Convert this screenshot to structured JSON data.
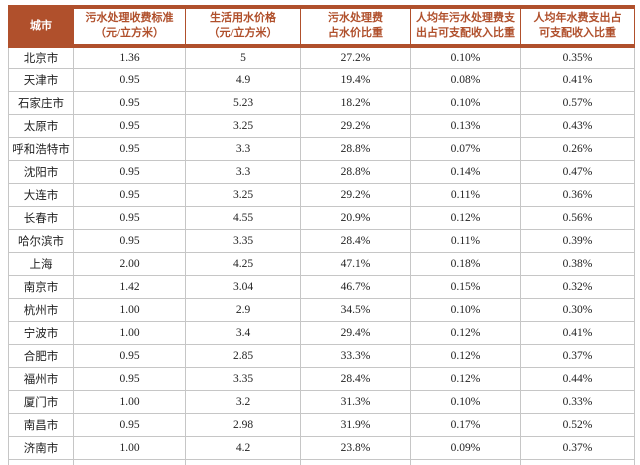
{
  "colors": {
    "accent": "#b0502c",
    "gridline": "#c6c6c6",
    "body_text": "#1f1f1f",
    "header_first_cell_text": "#ffffff"
  },
  "table": {
    "columns": [
      {
        "label": "城市"
      },
      {
        "label": "污水处理收费标准\n（元/立方米）"
      },
      {
        "label": "生活用水价格\n（元/立方米）"
      },
      {
        "label": "污水处理费\n占水价比重"
      },
      {
        "label": "人均年污水处理费支\n出占可支配收入比重"
      },
      {
        "label": "人均年水费支出占\n可支配收入比重"
      }
    ],
    "rows": [
      {
        "cells": [
          "北京市",
          "1.36",
          "5",
          "27.2%",
          "0.10%",
          "0.35%"
        ]
      },
      {
        "cells": [
          "天津市",
          "0.95",
          "4.9",
          "19.4%",
          "0.08%",
          "0.41%"
        ]
      },
      {
        "cells": [
          "石家庄市",
          "0.95",
          "5.23",
          "18.2%",
          "0.10%",
          "0.57%"
        ]
      },
      {
        "cells": [
          "太原市",
          "0.95",
          "3.25",
          "29.2%",
          "0.13%",
          "0.43%"
        ]
      },
      {
        "cells": [
          "呼和浩特市",
          "0.95",
          "3.3",
          "28.8%",
          "0.07%",
          "0.26%"
        ]
      },
      {
        "cells": [
          "沈阳市",
          "0.95",
          "3.3",
          "28.8%",
          "0.14%",
          "0.47%"
        ]
      },
      {
        "cells": [
          "大连市",
          "0.95",
          "3.25",
          "29.2%",
          "0.11%",
          "0.36%"
        ]
      },
      {
        "cells": [
          "长春市",
          "0.95",
          "4.55",
          "20.9%",
          "0.12%",
          "0.56%"
        ]
      },
      {
        "cells": [
          "哈尔滨市",
          "0.95",
          "3.35",
          "28.4%",
          "0.11%",
          "0.39%"
        ]
      },
      {
        "cells": [
          "上海",
          "2.00",
          "4.25",
          "47.1%",
          "0.18%",
          "0.38%"
        ]
      },
      {
        "cells": [
          "南京市",
          "1.42",
          "3.04",
          "46.7%",
          "0.15%",
          "0.32%"
        ]
      },
      {
        "cells": [
          "杭州市",
          "1.00",
          "2.9",
          "34.5%",
          "0.10%",
          "0.30%"
        ]
      },
      {
        "cells": [
          "宁波市",
          "1.00",
          "3.4",
          "29.4%",
          "0.12%",
          "0.41%"
        ]
      },
      {
        "cells": [
          "合肥市",
          "0.95",
          "2.85",
          "33.3%",
          "0.12%",
          "0.37%"
        ]
      },
      {
        "cells": [
          "福州市",
          "0.95",
          "3.35",
          "28.4%",
          "0.12%",
          "0.44%"
        ]
      },
      {
        "cells": [
          "厦门市",
          "1.00",
          "3.2",
          "31.3%",
          "0.10%",
          "0.33%"
        ]
      },
      {
        "cells": [
          "南昌市",
          "0.95",
          "2.98",
          "31.9%",
          "0.17%",
          "0.52%"
        ]
      },
      {
        "cells": [
          "济南市",
          "1.00",
          "4.2",
          "23.8%",
          "0.09%",
          "0.37%"
        ]
      }
    ]
  }
}
